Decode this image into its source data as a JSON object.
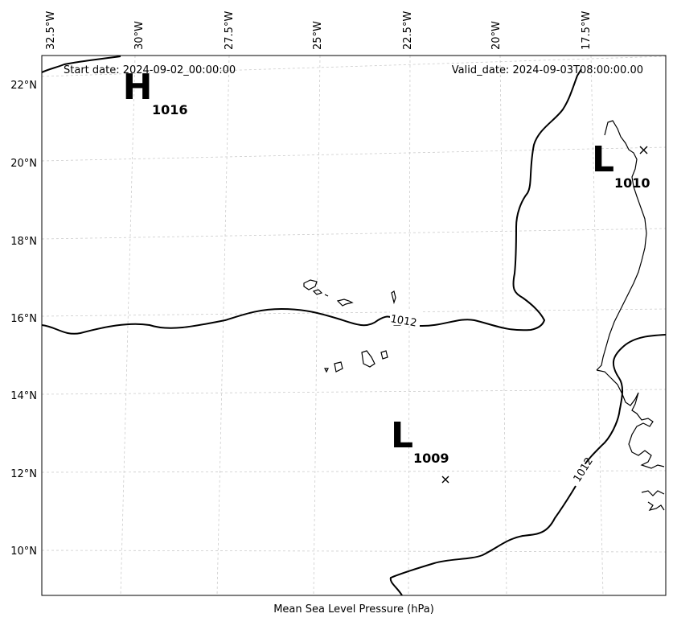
{
  "header": {
    "start_date": "Start date: 2024-09-02_00:00:00",
    "valid_date": "Valid_date: 2024-09-03T08:00:00.00"
  },
  "footer": {
    "caption": "Mean Sea Level Pressure (hPa)"
  },
  "axes": {
    "longitude_labels": [
      "32.5°W",
      "30°W",
      "27.5°W",
      "25°W",
      "22.5°W",
      "20°W",
      "17.5°W"
    ],
    "latitude_labels": [
      "22°N",
      "20°N",
      "18°N",
      "16°N",
      "14°N",
      "12°N",
      "10°N"
    ]
  },
  "pressure_centers": [
    {
      "type": "H",
      "value": "1016"
    },
    {
      "type": "L",
      "value": "1010"
    },
    {
      "type": "L",
      "value": "1009"
    }
  ],
  "contours": [
    {
      "value": "1012"
    },
    {
      "value": "1012"
    }
  ],
  "colors": {
    "contour": "#000000",
    "coast": "#000000",
    "grid": "#cccccc"
  }
}
